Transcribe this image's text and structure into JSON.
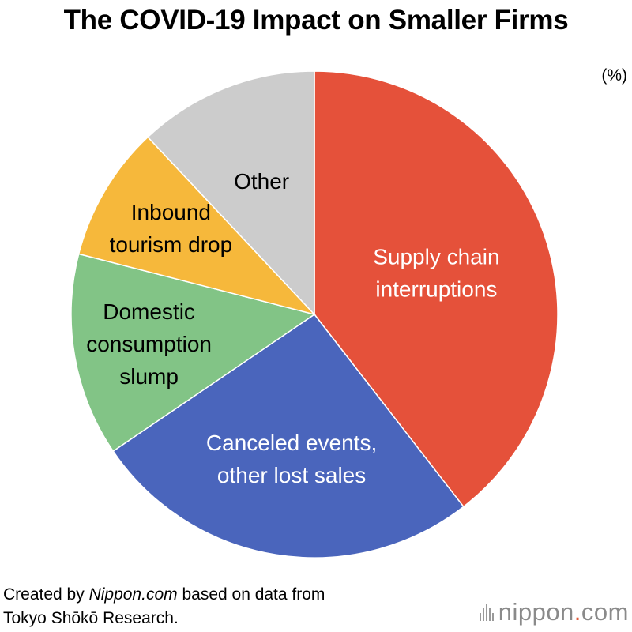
{
  "header": {
    "title": "The COVID-19 Impact on Smaller Firms",
    "unit": "(%)"
  },
  "chart_data": {
    "type": "pie",
    "title": "The COVID-19 Impact on Smaller Firms",
    "unit": "(%)",
    "start_angle_deg": 0,
    "direction": "clockwise",
    "slices": [
      {
        "label": [
          "Supply chain",
          "interruptions"
        ],
        "value": 39.5,
        "color": "#e5513a",
        "text_color": "#ffffff"
      },
      {
        "label": [
          "Canceled events,",
          "other lost sales"
        ],
        "value": 26.0,
        "color": "#4a65bc",
        "text_color": "#ffffff"
      },
      {
        "label": [
          "Domestic",
          "consumption",
          "slump"
        ],
        "value": 13.5,
        "color": "#82c486",
        "text_color": "#000000"
      },
      {
        "label": [
          "Inbound",
          "tourism drop"
        ],
        "value": 9.0,
        "color": "#f6b83b",
        "text_color": "#000000"
      },
      {
        "label": [
          "Other"
        ],
        "value": 12.0,
        "color": "#cccccc",
        "text_color": "#000000"
      }
    ]
  },
  "footer": {
    "source_prefix": "Created by ",
    "source_site": "Nippon.com",
    "source_suffix": " based on data from",
    "source_line2": "Tokyo Shōkō Research.",
    "logo_main": "nippon",
    "logo_dot": ".",
    "logo_tld": "com",
    "logo_icon": "nippon-bars-icon"
  }
}
